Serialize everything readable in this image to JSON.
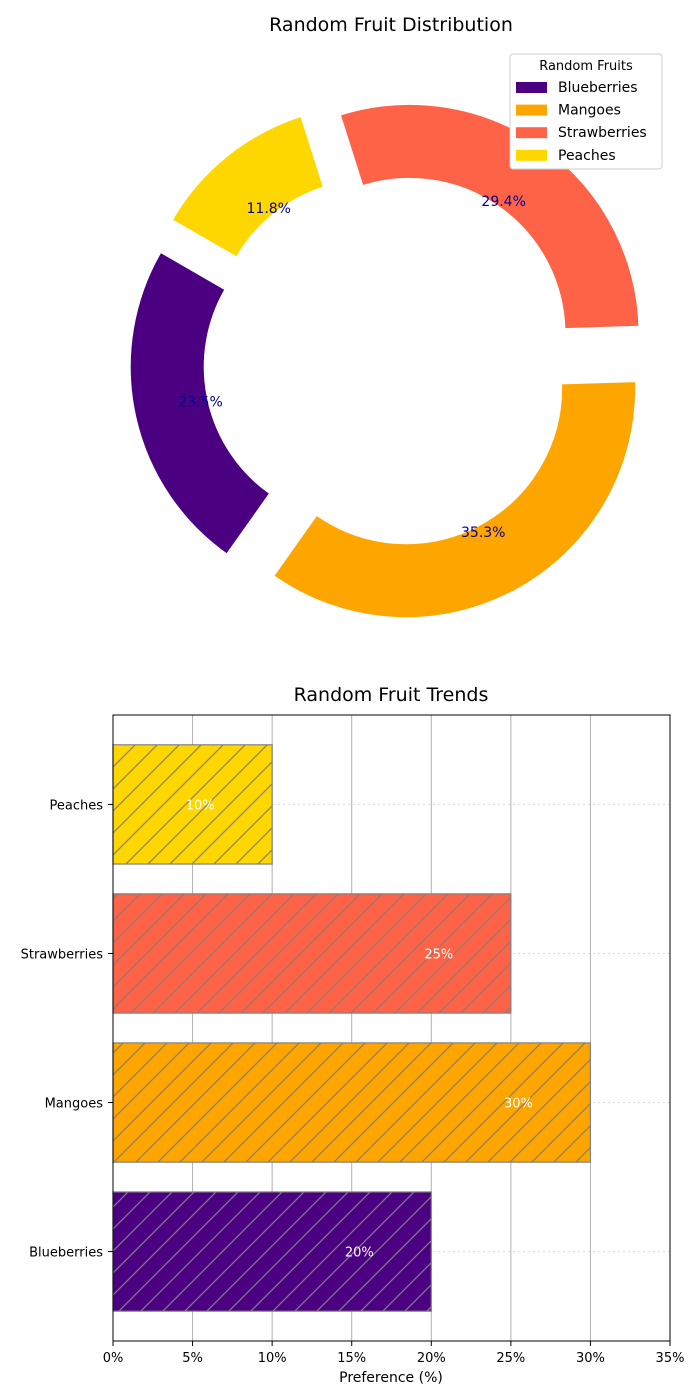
{
  "chart_data": [
    {
      "type": "pie",
      "title": "Random Fruit Distribution",
      "donut": true,
      "exploded": true,
      "start_angle_deg": 150,
      "legend": {
        "title": "Random Fruits",
        "placement": "top-right"
      },
      "slices": [
        {
          "label": "Blueberries",
          "value": 20,
          "pct_label": "23.5%",
          "color": "#4B0082"
        },
        {
          "label": "Mangoes",
          "value": 30,
          "pct_label": "35.3%",
          "color": "#FFA500"
        },
        {
          "label": "Strawberries",
          "value": 25,
          "pct_label": "29.4%",
          "color": "#FF6347"
        },
        {
          "label": "Peaches",
          "value": 10,
          "pct_label": "11.8%",
          "color": "#FFD700"
        }
      ],
      "pct_label_color": "#00008B"
    },
    {
      "type": "bar",
      "orientation": "horizontal",
      "title": "Random Fruit Trends",
      "xlabel": "Preference (%)",
      "ylabel": "",
      "xlim": [
        0,
        35
      ],
      "xticks": [
        0,
        5,
        10,
        15,
        20,
        25,
        30,
        35
      ],
      "xtick_labels": [
        "0%",
        "5%",
        "10%",
        "15%",
        "20%",
        "25%",
        "30%",
        "35%"
      ],
      "grid": true,
      "hatch": "diagonal",
      "bars": [
        {
          "category": "Blueberries",
          "value": 20,
          "value_label": "20%",
          "color": "#4B0082"
        },
        {
          "category": "Mangoes",
          "value": 30,
          "value_label": "30%",
          "color": "#FFA500"
        },
        {
          "category": "Strawberries",
          "value": 25,
          "value_label": "25%",
          "color": "#FF6347"
        },
        {
          "category": "Peaches",
          "value": 10,
          "value_label": "10%",
          "color": "#FFD700"
        }
      ]
    }
  ]
}
